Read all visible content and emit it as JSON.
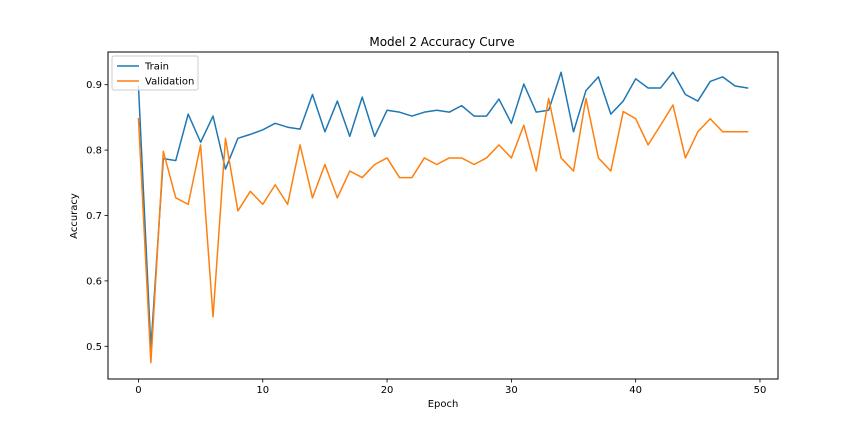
{
  "chart_data": {
    "type": "line",
    "title": "Model 2 Accuracy Curve",
    "xlabel": "Epoch",
    "ylabel": "Accuracy",
    "xlim": [
      -2.45,
      51.45
    ],
    "ylim": [
      0.45,
      0.95
    ],
    "xticks": [
      0,
      10,
      20,
      30,
      40,
      50
    ],
    "xtick_labels": [
      "0",
      "10",
      "20",
      "30",
      "40",
      "50"
    ],
    "yticks": [
      0.5,
      0.6,
      0.7,
      0.8,
      0.9
    ],
    "ytick_labels": [
      "0.5",
      "0.6",
      "0.7",
      "0.8",
      "0.9"
    ],
    "grid": false,
    "legend_position": "top-left",
    "x": [
      0,
      1,
      2,
      3,
      4,
      5,
      6,
      7,
      8,
      9,
      10,
      11,
      12,
      13,
      14,
      15,
      16,
      17,
      18,
      19,
      20,
      21,
      22,
      23,
      24,
      25,
      26,
      27,
      28,
      29,
      30,
      31,
      32,
      33,
      34,
      35,
      36,
      37,
      38,
      39,
      40,
      41,
      42,
      43,
      44,
      45,
      46,
      47,
      48,
      49
    ],
    "series": [
      {
        "name": "Train",
        "color": "#1f77b4",
        "values": [
          0.898,
          0.497,
          0.787,
          0.784,
          0.855,
          0.812,
          0.852,
          0.771,
          0.818,
          0.824,
          0.831,
          0.841,
          0.835,
          0.832,
          0.885,
          0.828,
          0.875,
          0.821,
          0.881,
          0.821,
          0.861,
          0.858,
          0.852,
          0.858,
          0.861,
          0.858,
          0.868,
          0.852,
          0.852,
          0.878,
          0.841,
          0.901,
          0.858,
          0.861,
          0.919,
          0.828,
          0.891,
          0.912,
          0.855,
          0.875,
          0.909,
          0.895,
          0.895,
          0.919,
          0.885,
          0.875,
          0.905,
          0.912,
          0.898,
          0.895
        ]
      },
      {
        "name": "Validation",
        "color": "#ff7f0e",
        "values": [
          0.848,
          0.475,
          0.798,
          0.727,
          0.717,
          0.808,
          0.545,
          0.818,
          0.707,
          0.737,
          0.717,
          0.747,
          0.717,
          0.808,
          0.727,
          0.778,
          0.727,
          0.768,
          0.758,
          0.778,
          0.788,
          0.758,
          0.758,
          0.788,
          0.778,
          0.788,
          0.788,
          0.778,
          0.788,
          0.808,
          0.788,
          0.838,
          0.768,
          0.879,
          0.788,
          0.768,
          0.879,
          0.788,
          0.768,
          0.859,
          0.848,
          0.808,
          0.838,
          0.869,
          0.788,
          0.828,
          0.848,
          0.828,
          0.828,
          0.828
        ]
      }
    ]
  }
}
